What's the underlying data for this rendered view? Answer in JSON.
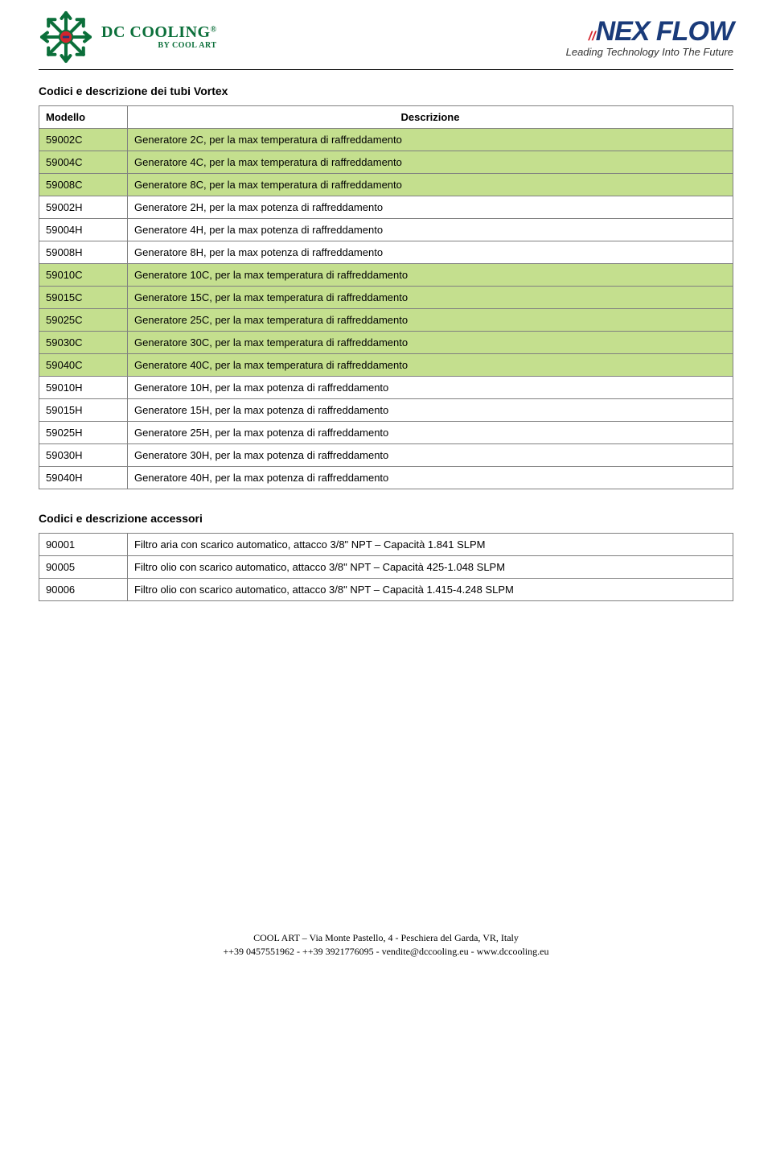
{
  "logo_left": {
    "brand": "DC COOLING",
    "reg": "®",
    "byline": "BY COOL ART",
    "snowflake": {
      "stroke": "#0b6f3a",
      "center_fill": "#d3252e",
      "accent": "#1a3b7a"
    }
  },
  "logo_right": {
    "slashes": "//",
    "brand": "NEX FLOW",
    "tagline": "Leading Technology Into The Future",
    "brand_color": "#1a3b7a",
    "slash_color": "#d3252e"
  },
  "section1_title": "Codici e descrizione dei tubi Vortex",
  "table1": {
    "headers": {
      "modello": "Modello",
      "descrizione": "Descrizione"
    },
    "rows": [
      {
        "code": "59002C",
        "desc": "Generatore 2C, per la max temperatura di raffreddamento",
        "hl": true
      },
      {
        "code": "59004C",
        "desc": "Generatore 4C, per la max temperatura di raffreddamento",
        "hl": true
      },
      {
        "code": "59008C",
        "desc": "Generatore 8C, per la max temperatura di raffreddamento",
        "hl": true
      },
      {
        "code": "59002H",
        "desc": "Generatore 2H, per la max potenza di raffreddamento",
        "hl": false
      },
      {
        "code": "59004H",
        "desc": "Generatore 4H, per la max potenza di raffreddamento",
        "hl": false
      },
      {
        "code": "59008H",
        "desc": "Generatore 8H, per la max potenza di raffreddamento",
        "hl": false
      },
      {
        "code": "59010C",
        "desc": "Generatore 10C, per la max temperatura di raffreddamento",
        "hl": true
      },
      {
        "code": "59015C",
        "desc": "Generatore 15C, per la max temperatura di raffreddamento",
        "hl": true
      },
      {
        "code": "59025C",
        "desc": "Generatore 25C, per la max temperatura di raffreddamento",
        "hl": true
      },
      {
        "code": "59030C",
        "desc": "Generatore 30C, per la max temperatura di raffreddamento",
        "hl": true
      },
      {
        "code": "59040C",
        "desc": "Generatore 40C, per la max temperatura di raffreddamento",
        "hl": true
      },
      {
        "code": "59010H",
        "desc": "Generatore 10H, per la max potenza di raffreddamento",
        "hl": false
      },
      {
        "code": "59015H",
        "desc": "Generatore 15H, per la max potenza di raffreddamento",
        "hl": false
      },
      {
        "code": "59025H",
        "desc": "Generatore 25H, per la max potenza di raffreddamento",
        "hl": false
      },
      {
        "code": "59030H",
        "desc": "Generatore 30H, per la max potenza di raffreddamento",
        "hl": false
      },
      {
        "code": "59040H",
        "desc": "Generatore 40H, per la max potenza di raffreddamento",
        "hl": false
      }
    ],
    "highlight_color": "#c4df8e"
  },
  "section2_title": "Codici e descrizione accessori",
  "table2": {
    "rows": [
      {
        "code": "90001",
        "desc": "Filtro aria con scarico automatico, attacco 3/8\" NPT – Capacità 1.841 SLPM"
      },
      {
        "code": "90005",
        "desc": "Filtro olio con scarico automatico, attacco 3/8\" NPT – Capacità 425-1.048 SLPM"
      },
      {
        "code": "90006",
        "desc": "Filtro olio con scarico automatico, attacco 3/8\" NPT – Capacità 1.415-4.248 SLPM"
      }
    ]
  },
  "footer": {
    "line1": "COOL ART – Via Monte Pastello, 4 - Peschiera del Garda, VR, Italy",
    "line2": " ++39 0457551962 - ++39 3921776095 -  vendite@dccooling.eu - www.dccooling.eu"
  }
}
